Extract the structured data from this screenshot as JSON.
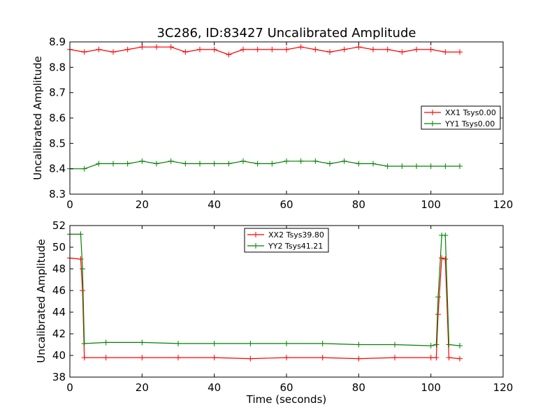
{
  "colors": {
    "series_red": "#ff0000",
    "series_green": "#008000",
    "axes": "#000000",
    "background": "#ffffff"
  },
  "chart_data": [
    {
      "type": "line",
      "title": "3C286, ID:83427 Uncalibrated Amplitude",
      "xlabel": "",
      "ylabel": "Uncalibrated Amplitude",
      "xlim": [
        0,
        120
      ],
      "ylim": [
        8.3,
        8.9
      ],
      "xticks": [
        "0",
        "20",
        "40",
        "60",
        "80",
        "100",
        "120"
      ],
      "yticks": [
        "8.3",
        "8.4",
        "8.5",
        "8.6",
        "8.7",
        "8.8",
        "8.9"
      ],
      "grid": false,
      "legend_position": "center-right",
      "x": [
        0,
        4,
        8,
        12,
        16,
        20,
        24,
        28,
        32,
        36,
        40,
        44,
        48,
        52,
        56,
        60,
        64,
        68,
        72,
        76,
        80,
        84,
        88,
        92,
        96,
        100,
        104,
        108
      ],
      "series": [
        {
          "name": "XX1 Tsys0.00",
          "color": "#ff0000",
          "marker": "+",
          "values": [
            8.87,
            8.86,
            8.87,
            8.86,
            8.87,
            8.88,
            8.88,
            8.88,
            8.86,
            8.87,
            8.87,
            8.85,
            8.87,
            8.87,
            8.87,
            8.87,
            8.88,
            8.87,
            8.86,
            8.87,
            8.88,
            8.87,
            8.87,
            8.86,
            8.87,
            8.87,
            8.86,
            8.86
          ]
        },
        {
          "name": "YY1 Tsys0.00",
          "color": "#008000",
          "marker": "+",
          "values": [
            8.4,
            8.4,
            8.42,
            8.42,
            8.42,
            8.43,
            8.42,
            8.43,
            8.42,
            8.42,
            8.42,
            8.42,
            8.43,
            8.42,
            8.42,
            8.43,
            8.43,
            8.43,
            8.42,
            8.43,
            8.42,
            8.42,
            8.41,
            8.41,
            8.41,
            8.41,
            8.41,
            8.41
          ]
        }
      ]
    },
    {
      "type": "line",
      "title": "",
      "xlabel": "Time (seconds)",
      "ylabel": "Uncalibrated Amplitude",
      "xlim": [
        0,
        120
      ],
      "ylim": [
        38,
        52
      ],
      "xticks": [
        "0",
        "20",
        "40",
        "60",
        "80",
        "100",
        "120"
      ],
      "yticks": [
        "38",
        "40",
        "42",
        "44",
        "46",
        "48",
        "50",
        "52"
      ],
      "grid": false,
      "legend_position": "top-center",
      "x": [
        0,
        3,
        3.5,
        4,
        10,
        20,
        30,
        40,
        50,
        60,
        70,
        80,
        90,
        100,
        101.5,
        102,
        103,
        104,
        105,
        108
      ],
      "series": [
        {
          "name": "XX2 Tsys39.80",
          "color": "#ff0000",
          "marker": "+",
          "values": [
            49.0,
            48.9,
            46.0,
            39.8,
            39.8,
            39.8,
            39.8,
            39.8,
            39.7,
            39.8,
            39.8,
            39.7,
            39.8,
            39.8,
            39.8,
            43.8,
            49.0,
            48.9,
            39.8,
            39.7
          ]
        },
        {
          "name": "YY2 Tsys41.21",
          "color": "#008000",
          "marker": "+",
          "values": [
            51.2,
            51.2,
            48.0,
            41.1,
            41.2,
            41.2,
            41.1,
            41.1,
            41.1,
            41.1,
            41.1,
            41.0,
            41.0,
            40.9,
            41.0,
            45.4,
            51.1,
            51.1,
            41.0,
            40.9
          ]
        }
      ]
    }
  ]
}
